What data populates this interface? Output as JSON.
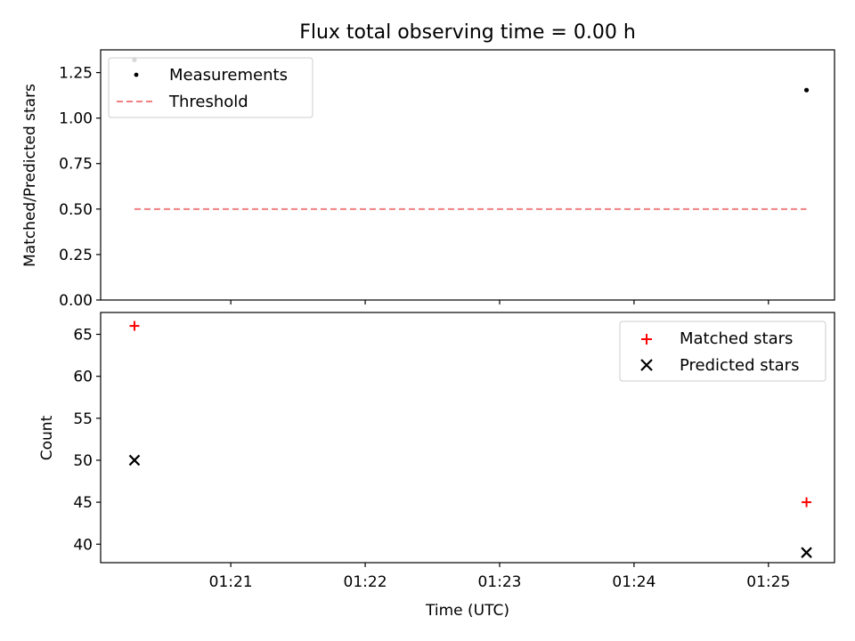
{
  "chart_data": [
    {
      "type": "scatter",
      "title": "Flux total observing time = 0.00 h",
      "ylabel": "Matched/Predicted stars",
      "xlabel": "",
      "xlim": [
        "01:20:01.9",
        "01:25:29.5"
      ],
      "ylim": [
        0,
        1.375
      ],
      "yticks": [
        "0.00",
        "0.25",
        "0.50",
        "0.75",
        "1.00",
        "1.25"
      ],
      "ytick_values": [
        0,
        0.25,
        0.5,
        0.75,
        1.0,
        1.25
      ],
      "xticks_labels_shown": false,
      "legend_position": "upper left",
      "series": [
        {
          "name": "Measurements",
          "marker": "dot",
          "color": "#000000",
          "points": [
            {
              "x": "01:20:17",
              "y": 1.32
            },
            {
              "x": "01:25:17",
              "y": 1.154
            }
          ]
        },
        {
          "name": "Threshold",
          "style": "dashed-line",
          "color": "#f08080",
          "points": [
            {
              "x": "01:20:17",
              "y": 0.5
            },
            {
              "x": "01:25:17",
              "y": 0.5
            }
          ]
        }
      ]
    },
    {
      "type": "scatter",
      "title": "",
      "ylabel": "Count",
      "xlabel": "Time (UTC)",
      "xlim": [
        "01:20:01.9",
        "01:25:29.5"
      ],
      "ylim": [
        37.8,
        67.6
      ],
      "yticks": [
        "40",
        "45",
        "50",
        "55",
        "60",
        "65"
      ],
      "ytick_values": [
        40,
        45,
        50,
        55,
        60,
        65
      ],
      "xticks": [
        "01:21",
        "01:22",
        "01:23",
        "01:24",
        "01:25"
      ],
      "xtick_values": [
        "01:21:00",
        "01:22:00",
        "01:23:00",
        "01:24:00",
        "01:25:00"
      ],
      "legend_position": "upper right",
      "series": [
        {
          "name": "Matched stars",
          "marker": "plus",
          "color": "#ff0000",
          "points": [
            {
              "x": "01:20:17",
              "y": 66
            },
            {
              "x": "01:25:17",
              "y": 45
            }
          ]
        },
        {
          "name": "Predicted stars",
          "marker": "x",
          "color": "#000000",
          "points": [
            {
              "x": "01:20:17",
              "y": 50
            },
            {
              "x": "01:25:17",
              "y": 39
            }
          ]
        }
      ]
    }
  ]
}
